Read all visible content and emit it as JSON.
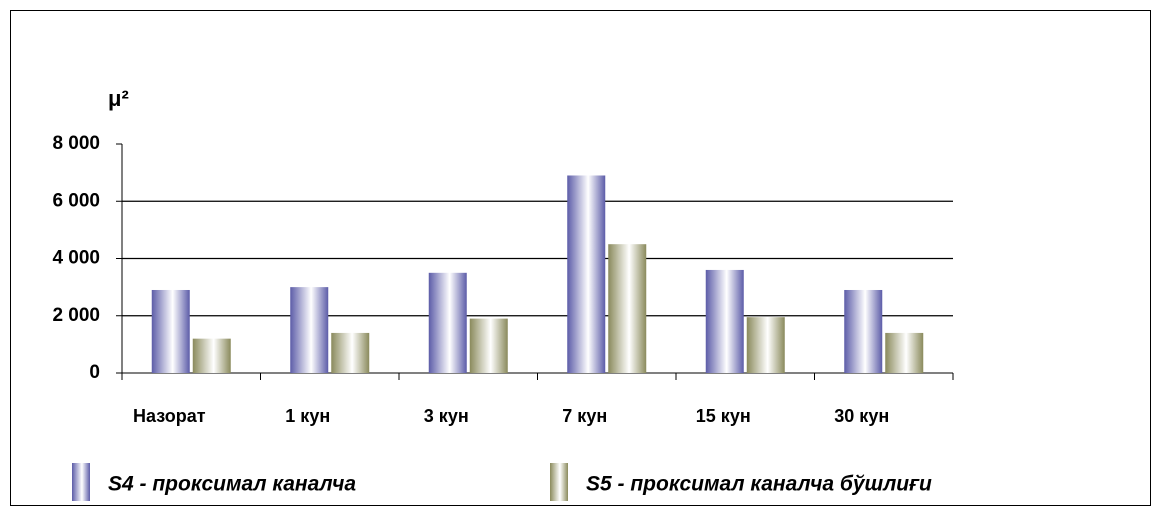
{
  "chart_data": {
    "type": "bar",
    "y_label": "μ²",
    "categories": [
      "Назорат",
      "1 кун",
      "3 кун",
      "7 кун",
      "15 кун",
      "30 кун"
    ],
    "series": [
      {
        "name": "S4 - проксимал каналча",
        "color": "#5c5ca8",
        "values": [
          2900,
          3000,
          3500,
          6900,
          3600,
          2900
        ]
      },
      {
        "name": "S5 - проксимал каналча бўшлиғи",
        "color": "#8a8a5c",
        "values": [
          1200,
          1400,
          1900,
          4500,
          1950,
          1400
        ]
      }
    ],
    "ylim": [
      0,
      8000
    ],
    "yticks": [
      0,
      {
        "value": 2000,
        "label": "2 000"
      },
      {
        "value": 4000,
        "label": "4 000"
      },
      {
        "value": 6000,
        "label": "6 000"
      },
      {
        "value": 8000,
        "label": "8 000"
      }
    ],
    "grid": true,
    "legend": "bottom"
  }
}
